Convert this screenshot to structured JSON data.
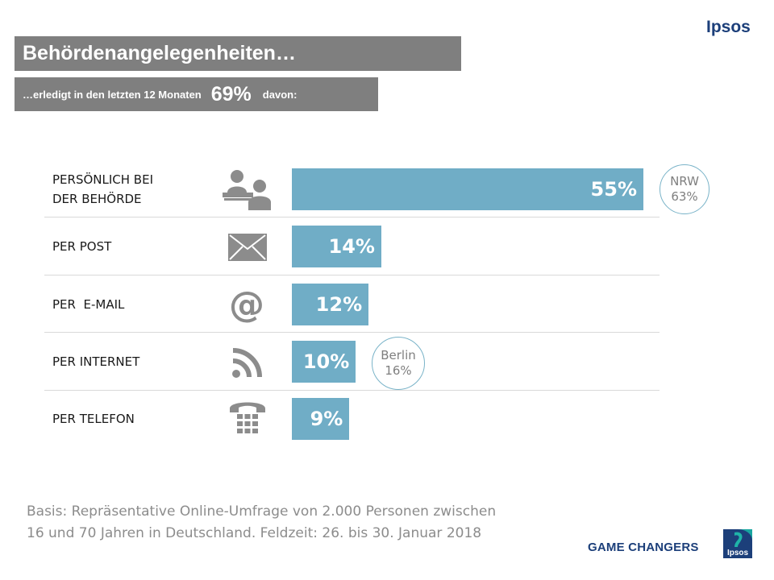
{
  "brand": "Ipsos",
  "header": {
    "title": "Behördenangelegenheiten…",
    "subtitle_prefix": "…erledigt in den letzten 12 Monaten",
    "subtitle_value": "69%",
    "subtitle_suffix": "davon:"
  },
  "chart_data": {
    "type": "bar",
    "orientation": "horizontal",
    "title": "Behördenangelegenheiten…",
    "categories": [
      [
        "PERSÖNLICH BEI",
        "DER BEHÖRDE"
      ],
      [
        "PER POST"
      ],
      [
        "PER  E-MAIL"
      ],
      [
        "PER INTERNET"
      ],
      [
        "PER TELEFON"
      ]
    ],
    "values": [
      55,
      14,
      12,
      10,
      9
    ],
    "value_labels": [
      "55%",
      "14%",
      "12%",
      "10%",
      "9%"
    ],
    "icons": [
      "meeting-icon",
      "envelope-icon",
      "at-sign-icon",
      "rss-feed-icon",
      "telephone-icon"
    ],
    "xlim": [
      0,
      55
    ],
    "annotations": [
      {
        "category_index": 0,
        "line1": "NRW",
        "line2": "63%"
      },
      {
        "category_index": 3,
        "line1": "Berlin",
        "line2": "16%"
      }
    ],
    "colors": {
      "bar": "#70adc6",
      "bubble_border": "#79b3c8"
    }
  },
  "footnote": {
    "line1": "Basis: Repräsentative Online-Umfrage von 2.000 Personen zwischen",
    "line2": "16 und 70 Jahren in Deutschland. Feldzeit: 26. bis 30. Januar 2018"
  },
  "footer": {
    "tagline": "GAME CHANGERS",
    "logo_text": "Ipsos"
  }
}
